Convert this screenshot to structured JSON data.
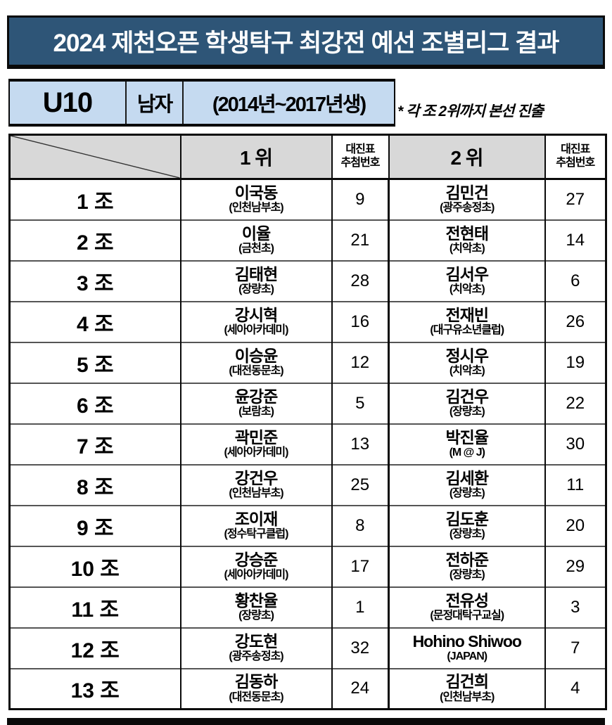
{
  "page_title": "2024 제천오픈 학생탁구 최강전 예선 조별리그 결과",
  "category_bar": {
    "division": "U10",
    "gender": "남자",
    "birth_years": "(2014년~2017년생)",
    "note": "* 각 조 2위까지 본선 진출"
  },
  "table": {
    "headers": {
      "rank1": "1 위",
      "draw1": [
        "대진표",
        "추첨번호"
      ],
      "rank2": "2 위",
      "draw2": [
        "대진표",
        "추첨번호"
      ]
    },
    "rows": [
      {
        "group": "1 조",
        "first": {
          "name": "이국동",
          "club": "(인천남부초)",
          "draw": "9"
        },
        "second": {
          "name": "김민건",
          "club": "(광주송정초)",
          "draw": "27"
        }
      },
      {
        "group": "2 조",
        "first": {
          "name": "이율",
          "club": "(금천초)",
          "draw": "21"
        },
        "second": {
          "name": "전현태",
          "club": "(치악초)",
          "draw": "14"
        }
      },
      {
        "group": "3 조",
        "first": {
          "name": "김태현",
          "club": "(장량초)",
          "draw": "28"
        },
        "second": {
          "name": "김서우",
          "club": "(치악초)",
          "draw": "6"
        }
      },
      {
        "group": "4 조",
        "first": {
          "name": "강시혁",
          "club": "(세아아카데미)",
          "draw": "16"
        },
        "second": {
          "name": "전재빈",
          "club": "(대구유소년클럽)",
          "draw": "26"
        }
      },
      {
        "group": "5 조",
        "first": {
          "name": "이승윤",
          "club": "(대전동문초)",
          "draw": "12"
        },
        "second": {
          "name": "정시우",
          "club": "(치악초)",
          "draw": "19"
        }
      },
      {
        "group": "6 조",
        "first": {
          "name": "윤강준",
          "club": "(보람초)",
          "draw": "5"
        },
        "second": {
          "name": "김건우",
          "club": "(장량초)",
          "draw": "22"
        }
      },
      {
        "group": "7 조",
        "first": {
          "name": "곽민준",
          "club": "(세아아카데미)",
          "draw": "13"
        },
        "second": {
          "name": "박진율",
          "club": "(M @ J)",
          "draw": "30"
        }
      },
      {
        "group": "8 조",
        "first": {
          "name": "강건우",
          "club": "(인천남부초)",
          "draw": "25"
        },
        "second": {
          "name": "김세환",
          "club": "(장량초)",
          "draw": "11"
        }
      },
      {
        "group": "9 조",
        "first": {
          "name": "조이재",
          "club": "(정수탁구클럽)",
          "draw": "8"
        },
        "second": {
          "name": "김도훈",
          "club": "(장량초)",
          "draw": "20"
        }
      },
      {
        "group": "10 조",
        "first": {
          "name": "강승준",
          "club": "(세아아카데미)",
          "draw": "17"
        },
        "second": {
          "name": "전하준",
          "club": "(장량초)",
          "draw": "29"
        }
      },
      {
        "group": "11 조",
        "first": {
          "name": "황찬율",
          "club": "(장량초)",
          "draw": "1"
        },
        "second": {
          "name": "전유성",
          "club": "(문정대탁구교실)",
          "draw": "3"
        }
      },
      {
        "group": "12 조",
        "first": {
          "name": "강도현",
          "club": "(광주송정초)",
          "draw": "32"
        },
        "second": {
          "name": "Hohino Shiwoo",
          "club": "(JAPAN)",
          "draw": "7"
        }
      },
      {
        "group": "13 조",
        "first": {
          "name": "김동하",
          "club": "(대전동문초)",
          "draw": "24"
        },
        "second": {
          "name": "김건희",
          "club": "(인천남부초)",
          "draw": "4"
        }
      }
    ]
  },
  "colors": {
    "title_bar_bg": "#2e5577",
    "title_text": "#ffffff",
    "category_bg": "#c5daf0",
    "table_header_bg": "#d8d8d8",
    "border": "#0a0a0a"
  }
}
